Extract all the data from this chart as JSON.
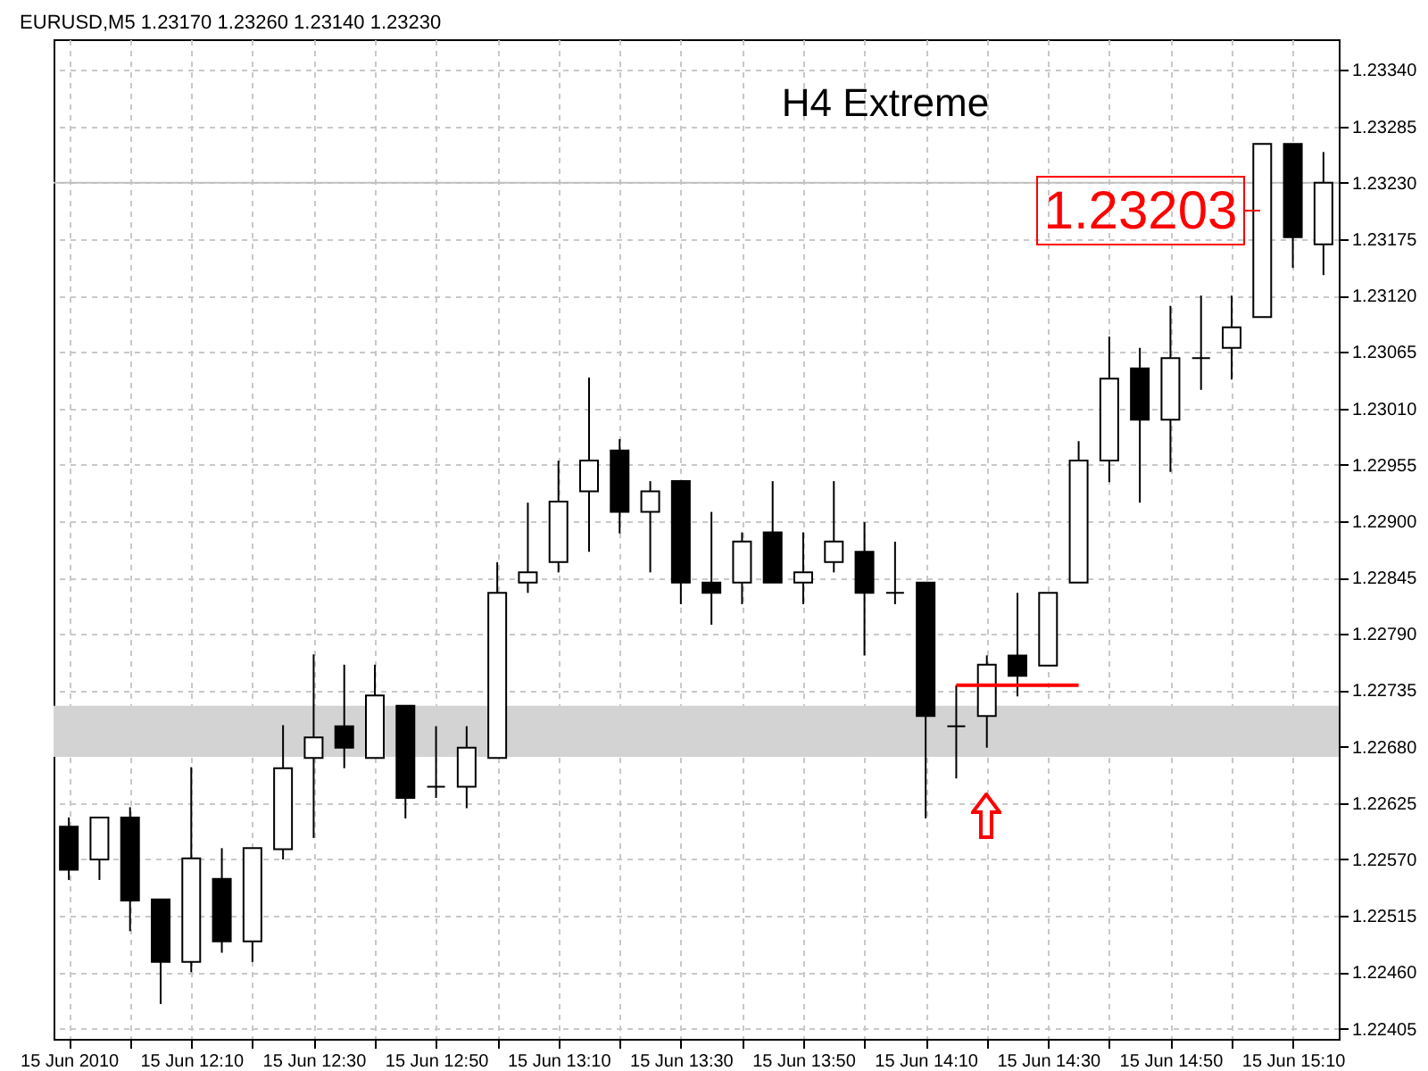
{
  "chart_data": {
    "type": "candlestick",
    "title": "EURUSD,M5  1.23170 1.23260 1.23140 1.23230",
    "categories": [
      "15 Jun 2010",
      null,
      null,
      null,
      "15 Jun 12:10",
      null,
      null,
      null,
      "15 Jun 12:30",
      null,
      null,
      null,
      "15 Jun 12:50",
      null,
      null,
      null,
      "15 Jun 13:10",
      null,
      null,
      null,
      "15 Jun 13:30",
      null,
      null,
      null,
      "15 Jun 13:50",
      null,
      null,
      null,
      "15 Jun 14:10",
      null,
      null,
      null,
      "15 Jun 14:30",
      null,
      null,
      null,
      "15 Jun 14:50",
      null,
      null,
      null,
      "15 Jun 15:10",
      null
    ],
    "ohlc": [
      [
        1.22602,
        1.22611,
        1.2255,
        1.2256
      ],
      [
        1.2257,
        1.22611,
        1.2255,
        1.22611
      ],
      [
        1.22611,
        1.22621,
        1.225,
        1.2253
      ],
      [
        1.22531,
        1.22531,
        1.22429,
        1.2247
      ],
      [
        1.2247,
        1.2266,
        1.2246,
        1.22571
      ],
      [
        1.22551,
        1.22581,
        1.22479,
        1.2249
      ],
      [
        1.2249,
        1.22581,
        1.2247,
        1.22581
      ],
      [
        1.2258,
        1.22701,
        1.2257,
        1.22659
      ],
      [
        1.22669,
        1.2277,
        1.22591,
        1.22689
      ],
      [
        1.227,
        1.2276,
        1.22659,
        1.22679
      ],
      [
        1.22669,
        1.2276,
        1.22669,
        1.2273
      ],
      [
        1.2272,
        1.2272,
        1.2261,
        1.2263
      ],
      [
        1.22641,
        1.227,
        1.2263,
        1.22641
      ],
      [
        1.22641,
        1.227,
        1.2262,
        1.22679
      ],
      [
        1.22669,
        1.2286,
        1.22669,
        1.2283
      ],
      [
        1.2284,
        1.22918,
        1.2283,
        1.2285
      ],
      [
        1.2286,
        1.22959,
        1.2285,
        1.22919
      ],
      [
        1.22929,
        1.2304,
        1.2287,
        1.22959
      ],
      [
        1.22969,
        1.2298,
        1.22888,
        1.22909
      ],
      [
        1.22909,
        1.22939,
        1.2285,
        1.22929
      ],
      [
        1.22939,
        1.22939,
        1.22819,
        1.2284
      ],
      [
        1.2284,
        1.22909,
        1.22799,
        1.2283
      ],
      [
        1.2284,
        1.22889,
        1.22819,
        1.2288
      ],
      [
        1.22889,
        1.22939,
        1.2284,
        1.2284
      ],
      [
        1.2284,
        1.22889,
        1.22819,
        1.2285
      ],
      [
        1.2286,
        1.22939,
        1.2285,
        1.2288
      ],
      [
        1.2287,
        1.22899,
        1.22769,
        1.2283
      ],
      [
        1.2283,
        1.2288,
        1.22819,
        1.2283
      ],
      [
        1.2284,
        1.2284,
        1.2261,
        1.2271
      ],
      [
        1.227,
        1.2274,
        1.22649,
        1.227
      ],
      [
        1.2271,
        1.22769,
        1.22679,
        1.2276
      ],
      [
        1.22769,
        1.2283,
        1.22729,
        1.22749
      ],
      [
        1.22759,
        1.2283,
        1.22759,
        1.2283
      ],
      [
        1.2284,
        1.22978,
        1.2284,
        1.22959
      ],
      [
        1.22959,
        1.2308,
        1.22938,
        1.23039
      ],
      [
        1.23049,
        1.23069,
        1.22918,
        1.22999
      ],
      [
        1.22999,
        1.2311,
        1.22948,
        1.23059
      ],
      [
        1.23059,
        1.2312,
        1.23028,
        1.23059
      ],
      [
        1.23069,
        1.2312,
        1.23038,
        1.23089
      ],
      [
        1.23099,
        1.23268,
        1.23099,
        1.23268
      ],
      [
        1.23268,
        1.23268,
        1.23147,
        1.23177
      ],
      [
        1.2317,
        1.2326,
        1.2314,
        1.2323
      ]
    ],
    "series": [
      {
        "type": "line",
        "color": "#ff0000",
        "values": [
          null,
          null,
          null,
          null,
          null,
          null,
          null,
          null,
          null,
          null,
          null,
          null,
          null,
          null,
          null,
          null,
          null,
          null,
          null,
          null,
          null,
          null,
          null,
          null,
          null,
          null,
          null,
          null,
          null,
          1.2274,
          1.2274,
          1.2274,
          1.2274,
          1.2274,
          null,
          null,
          null,
          null,
          null,
          null,
          null,
          null
        ]
      }
    ],
    "ylim": [
      1.22395,
      1.2337
    ],
    "yticks": [
      {
        "value": 1.2334,
        "label": "1.23340"
      },
      1.23285,
      {
        "value": 1.2323,
        "label": "1.23230"
      },
      1.23175,
      {
        "value": 1.2312,
        "label": "1.23120"
      },
      1.23065,
      {
        "value": 1.2301,
        "label": "1.23010"
      },
      1.22955,
      {
        "value": 1.229,
        "label": "1.22900"
      },
      1.22845,
      {
        "value": 1.2279,
        "label": "1.22790"
      },
      1.22735,
      {
        "value": 1.2268,
        "label": "1.22680"
      },
      1.22625,
      {
        "value": 1.2257,
        "label": "1.22570"
      },
      1.22515,
      {
        "value": 1.2246,
        "label": "1.22460"
      },
      1.22405
    ],
    "ref_lines": [
      {
        "axis": "y",
        "value": 1.2323,
        "color": "#c0c0c0"
      }
    ],
    "bands": [
      {
        "axis": "y",
        "from": 1.2267,
        "to": 1.2272,
        "color": "#d3d3d3"
      }
    ],
    "annotations": [
      "H4 Extreme",
      "1.23203"
    ],
    "grid": true
  }
}
